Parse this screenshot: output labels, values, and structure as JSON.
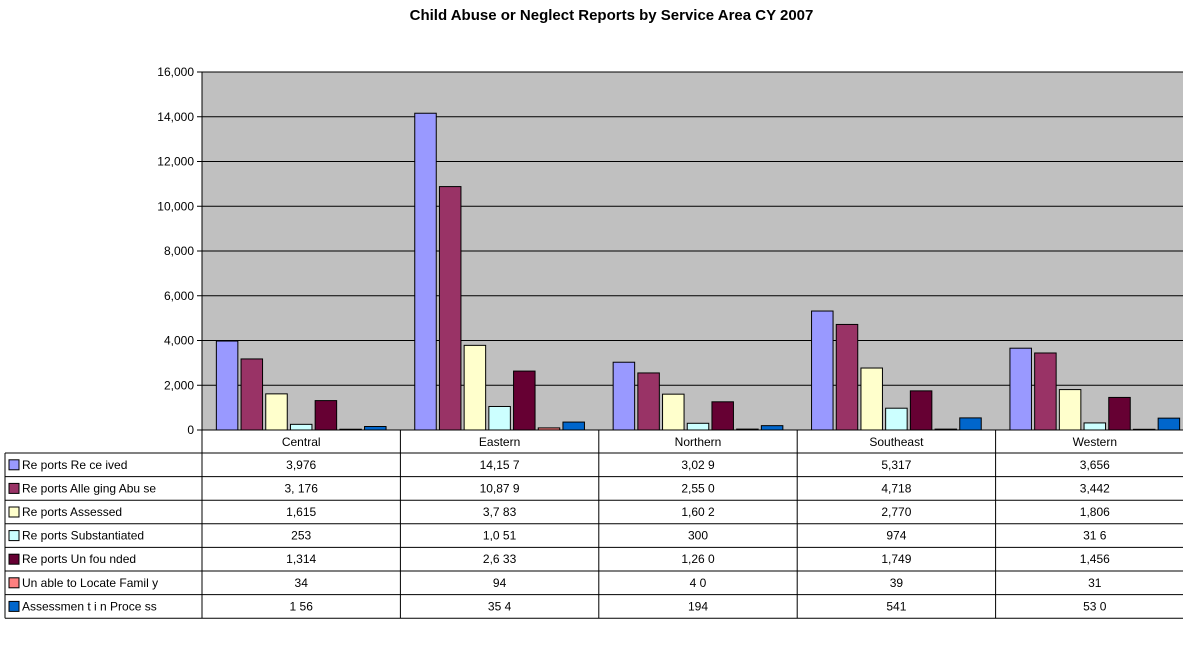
{
  "chart_data": {
    "type": "bar",
    "title": "Child Abuse or Neglect Reports by Service Area CY 2007",
    "xlabel": "",
    "ylabel": "",
    "ylim": [
      0,
      16000
    ],
    "yticks": [
      "0",
      "2,000",
      "4,000",
      "6,000",
      "8,000",
      "10,000",
      "12,000",
      "14,000",
      "16,000"
    ],
    "grid": true,
    "legend": "data-table-left",
    "plot_background": "#c0c0c0",
    "categories": [
      "Central",
      "Eastern",
      "Northern",
      "Southeast",
      "Western"
    ],
    "series": [
      {
        "name": "Re ports Re ce ived",
        "color": "#9999ff",
        "values": [
          3976,
          14157,
          3029,
          5317,
          3656
        ],
        "labels": [
          "3,976",
          "14,15 7",
          "3,02 9",
          "5,317",
          "3,656"
        ]
      },
      {
        "name": "Re ports Alle ging Abu se",
        "color": "#993366",
        "values": [
          3176,
          10879,
          2550,
          4718,
          3442
        ],
        "labels": [
          "3, 176",
          "10,87 9",
          "2,55 0",
          "4,718",
          "3,442"
        ]
      },
      {
        "name": "Re ports Assessed",
        "color": "#ffffcc",
        "values": [
          1615,
          3783,
          1602,
          2770,
          1806
        ],
        "labels": [
          "1,615",
          "3,7 83",
          "1,60 2",
          "2,770",
          "1,806"
        ]
      },
      {
        "name": "Re ports Substantiated",
        "color": "#ccffff",
        "values": [
          253,
          1051,
          300,
          974,
          316
        ],
        "labels": [
          "253",
          "1,0 51",
          "300",
          "974",
          "31 6"
        ]
      },
      {
        "name": "Re ports Un fou nded",
        "color": "#660033",
        "values": [
          1314,
          2633,
          1260,
          1749,
          1456
        ],
        "labels": [
          "1,314",
          "2,6 33",
          "1,26 0",
          "1,749",
          "1,456"
        ]
      },
      {
        "name": "Un able to Locate Famil y",
        "color": "#ff8080",
        "values": [
          34,
          94,
          40,
          39,
          31
        ],
        "labels": [
          "34",
          "94",
          "4 0",
          "39",
          "31"
        ]
      },
      {
        "name": "Assessmen t i n Proce ss",
        "color": "#0066cc",
        "values": [
          156,
          354,
          194,
          541,
          530
        ],
        "labels": [
          "1 56",
          "35 4",
          "194",
          "541",
          "53 0"
        ]
      }
    ]
  }
}
